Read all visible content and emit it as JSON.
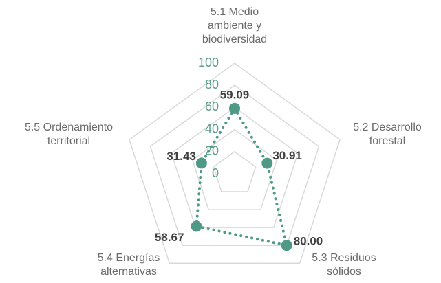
{
  "chart_data": {
    "type": "radar",
    "categories": [
      "5.1 Medio ambiente y biodiversidad",
      "5.2 Desarrollo forestal",
      "5.3 Residuos sólidos",
      "5.4 Energías alternativas",
      "5.5 Ordenamiento territorial"
    ],
    "values": [
      59.09,
      30.91,
      80.0,
      58.67,
      31.43
    ],
    "value_labels": [
      "59.09",
      "30.91",
      "80.00",
      "58.67",
      "31.43"
    ],
    "color": "#4e9a86",
    "ylim": [
      0,
      100
    ],
    "yticks": [
      0,
      20,
      40,
      60,
      80,
      100
    ],
    "grid": true
  }
}
